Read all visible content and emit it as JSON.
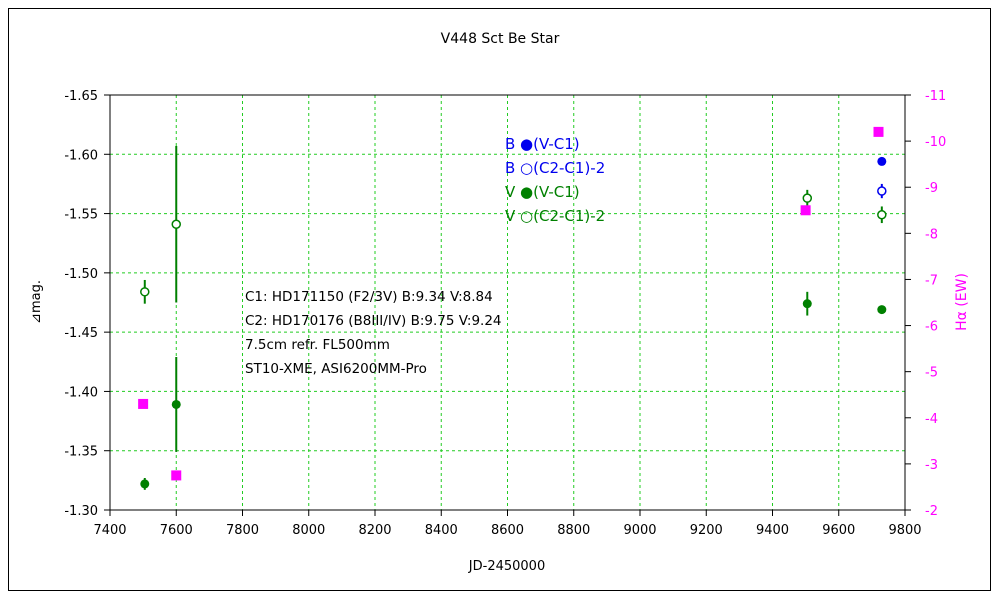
{
  "chart_data": {
    "type": "scatter",
    "title": "V448 Sct    Be Star",
    "xlabel": "JD-2450000",
    "ylabel_left": "⊿mag.",
    "ylabel_right": "Hα (EW)",
    "xlim": [
      7400,
      9800
    ],
    "xticks": [
      7400,
      7600,
      7800,
      8000,
      8200,
      8400,
      8600,
      8800,
      9000,
      9200,
      9400,
      9600,
      9800
    ],
    "ylim_left": [
      -1.3,
      -1.65
    ],
    "yticks_left": [
      "-1.65",
      "-1.60",
      "-1.55",
      "-1.50",
      "-1.45",
      "-1.40",
      "-1.35",
      "-1.30"
    ],
    "ylim_right": [
      -2,
      -11
    ],
    "yticks_right": [
      "-11",
      "-10",
      "-9",
      "-8",
      "-7",
      "-6",
      "-5",
      "-4",
      "-3",
      "-2"
    ],
    "grid": true,
    "legend_position": "top-center",
    "legend": [
      {
        "label": "B ●(V-C1)",
        "color": "#0000ee"
      },
      {
        "label": "B ○(C2-C1)-2",
        "color": "#0000ee"
      },
      {
        "label": "V ●(V-C1)",
        "color": "#008000"
      },
      {
        "label": "V ○(C2-C1)-2",
        "color": "#008000"
      }
    ],
    "annotations": [
      "C1: HD171150 (F2/3V)  B:9.34 V:8.84",
      "C2: HD170176 (B8III/IV) B:9.75 V:9.24",
      "7.5cm refr. FL500mm",
      "ST10-XME,  ASI6200MM-Pro"
    ],
    "series": [
      {
        "name": "B ●(V-C1)",
        "axis": "left",
        "color": "#0000ee",
        "marker": "filled",
        "points": [
          {
            "x": 9730,
            "y": -1.594,
            "err": 0.002
          }
        ]
      },
      {
        "name": "B ○(C2-C1)-2",
        "axis": "left",
        "color": "#0000ee",
        "marker": "open",
        "points": [
          {
            "x": 9730,
            "y": -1.569,
            "err": 0.006
          }
        ]
      },
      {
        "name": "V ●(V-C1)",
        "axis": "left",
        "color": "#008000",
        "marker": "filled",
        "points": [
          {
            "x": 7505,
            "y": -1.322,
            "err": 0.005
          },
          {
            "x": 7600,
            "y": -1.389,
            "err": 0.04
          },
          {
            "x": 9505,
            "y": -1.474,
            "err": 0.01
          },
          {
            "x": 9730,
            "y": -1.469,
            "err": 0.002
          }
        ]
      },
      {
        "name": "V ○(C2-C1)-2",
        "axis": "left",
        "color": "#008000",
        "marker": "open",
        "points": [
          {
            "x": 7505,
            "y": -1.484,
            "err": 0.01
          },
          {
            "x": 7600,
            "y": -1.541,
            "err": 0.066
          },
          {
            "x": 9505,
            "y": -1.563,
            "err": 0.007
          },
          {
            "x": 9730,
            "y": -1.549,
            "err": 0.007
          }
        ]
      },
      {
        "name": "Hα (EW)",
        "axis": "right",
        "color": "#ff00ff",
        "marker": "square",
        "points": [
          {
            "x": 7500,
            "y": -4.3
          },
          {
            "x": 7600,
            "y": -2.75
          },
          {
            "x": 9500,
            "y": -8.5
          },
          {
            "x": 9720,
            "y": -10.2
          }
        ]
      }
    ]
  }
}
